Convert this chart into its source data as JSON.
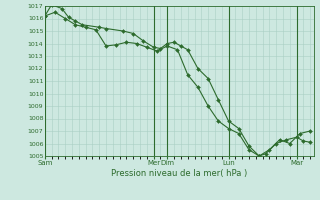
{
  "title": "",
  "xlabel": "Pression niveau de la mer( hPa )",
  "ylabel": "",
  "bg_color": "#cde8e0",
  "grid_color": "#aacfc5",
  "line_color": "#2d6b2d",
  "marker_color": "#2d6b2d",
  "ylim": [
    1005,
    1017
  ],
  "yticks": [
    1005,
    1006,
    1007,
    1008,
    1009,
    1010,
    1011,
    1012,
    1013,
    1014,
    1015,
    1016,
    1017
  ],
  "day_labels": [
    "Sam",
    "Mer",
    "Dim",
    "Lun",
    "Mar"
  ],
  "day_positions": [
    0,
    64,
    72,
    108,
    148
  ],
  "xlim": [
    0,
    158
  ],
  "series1_x": [
    0,
    4,
    10,
    14,
    18,
    22,
    32,
    36,
    46,
    52,
    58,
    64,
    68,
    72,
    76,
    80,
    84,
    90,
    96,
    102,
    108,
    114,
    120,
    126,
    130,
    136,
    142,
    148,
    152,
    156
  ],
  "series1_y": [
    1016.2,
    1017.1,
    1016.8,
    1016.1,
    1015.8,
    1015.5,
    1015.3,
    1015.2,
    1015.0,
    1014.8,
    1014.2,
    1013.7,
    1013.6,
    1014.0,
    1014.1,
    1013.8,
    1013.5,
    1012.0,
    1011.2,
    1009.5,
    1007.8,
    1007.2,
    1005.8,
    1005.0,
    1005.2,
    1006.0,
    1006.3,
    1006.5,
    1006.2,
    1006.1
  ],
  "series2_x": [
    0,
    6,
    12,
    18,
    24,
    30,
    36,
    42,
    48,
    54,
    60,
    66,
    72,
    78,
    84,
    90,
    96,
    102,
    108,
    114,
    120,
    126,
    132,
    138,
    144,
    150,
    156
  ],
  "series2_y": [
    1016.2,
    1016.5,
    1016.0,
    1015.5,
    1015.3,
    1015.1,
    1013.8,
    1013.9,
    1014.1,
    1014.0,
    1013.7,
    1013.4,
    1013.8,
    1013.5,
    1011.5,
    1010.5,
    1009.0,
    1007.8,
    1007.2,
    1006.8,
    1005.5,
    1005.0,
    1005.5,
    1006.3,
    1006.0,
    1006.8,
    1007.0
  ]
}
